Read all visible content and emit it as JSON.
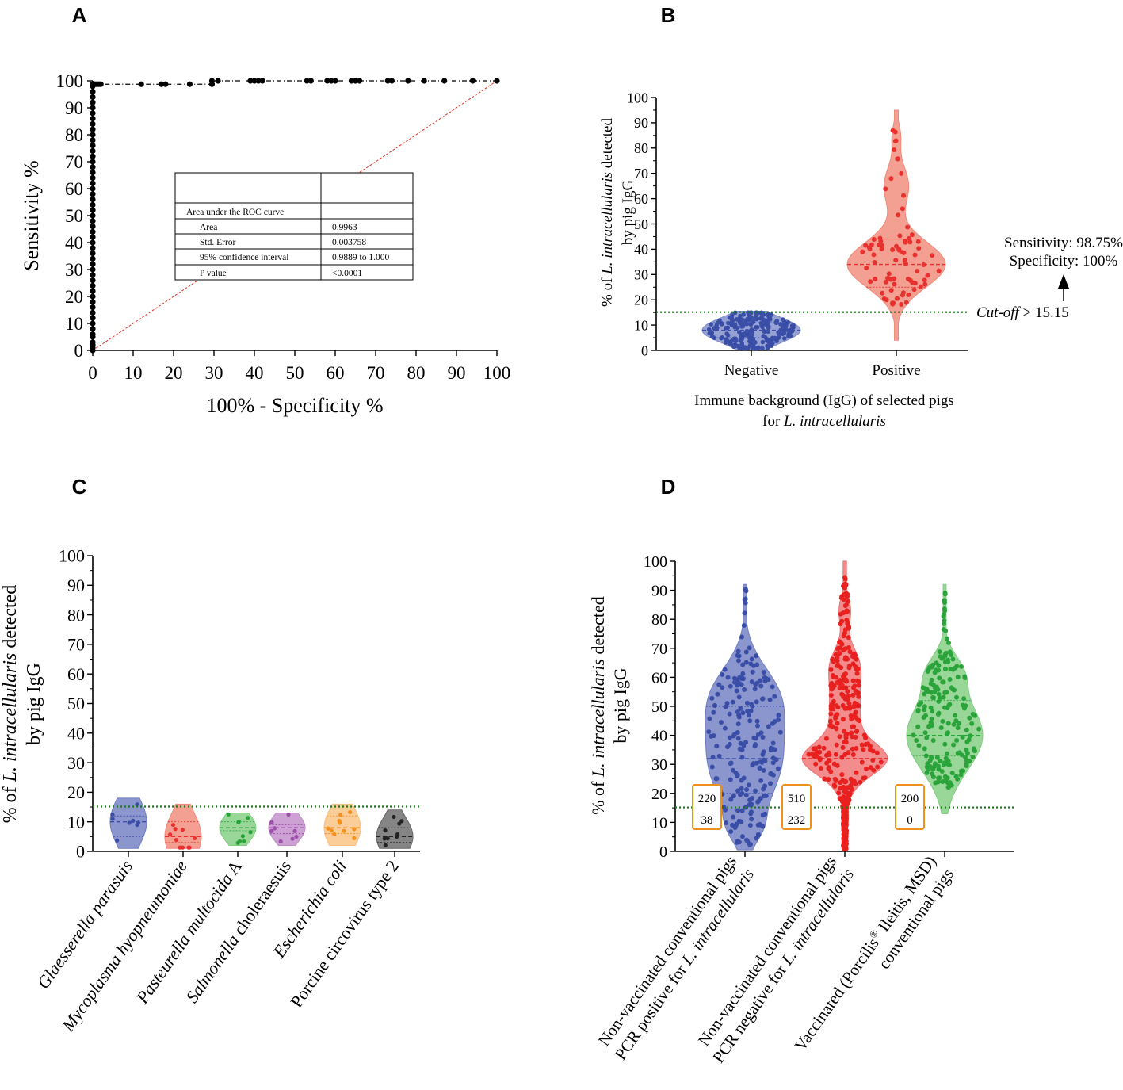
{
  "panels": {
    "A": "A",
    "B": "B",
    "C": "C",
    "D": "D"
  },
  "chart_data": [
    {
      "id": "A",
      "type": "line",
      "title": "",
      "xlabel": "100% - Specificity %",
      "ylabel": "Sensitivity %",
      "xlim": [
        0,
        100
      ],
      "ylim": [
        0,
        100
      ],
      "ticks": [
        "0",
        "10",
        "20",
        "30",
        "40",
        "50",
        "60",
        "70",
        "80",
        "90",
        "100"
      ],
      "series": [
        {
          "name": "ROC curve",
          "color": "#000000",
          "points": [
            [
              0,
              0
            ],
            [
              0,
              1
            ],
            [
              0,
              2
            ],
            [
              0,
              3
            ],
            [
              0,
              5
            ],
            [
              0,
              6
            ],
            [
              0,
              8
            ],
            [
              0,
              10
            ],
            [
              0,
              12
            ],
            [
              0,
              14
            ],
            [
              0,
              16
            ],
            [
              0,
              18
            ],
            [
              0,
              20
            ],
            [
              0,
              22
            ],
            [
              0,
              24
            ],
            [
              0,
              26
            ],
            [
              0,
              28
            ],
            [
              0,
              30
            ],
            [
              0,
              32
            ],
            [
              0,
              34
            ],
            [
              0,
              36
            ],
            [
              0,
              38
            ],
            [
              0,
              40
            ],
            [
              0,
              42
            ],
            [
              0,
              44
            ],
            [
              0,
              46
            ],
            [
              0,
              48
            ],
            [
              0,
              50
            ],
            [
              0,
              52
            ],
            [
              0,
              54
            ],
            [
              0,
              56
            ],
            [
              0,
              58
            ],
            [
              0,
              60
            ],
            [
              0,
              62
            ],
            [
              0,
              64
            ],
            [
              0,
              66
            ],
            [
              0,
              68
            ],
            [
              0,
              70
            ],
            [
              0,
              72
            ],
            [
              0,
              74
            ],
            [
              0,
              76
            ],
            [
              0,
              78
            ],
            [
              0,
              80
            ],
            [
              0,
              82
            ],
            [
              0,
              84
            ],
            [
              0,
              86
            ],
            [
              0,
              88
            ],
            [
              0,
              90
            ],
            [
              0,
              92
            ],
            [
              0,
              94
            ],
            [
              0,
              96
            ],
            [
              0,
              98
            ],
            [
              0,
              98.75
            ],
            [
              0.5,
              98.75
            ],
            [
              1,
              98.75
            ],
            [
              1.5,
              98.75
            ],
            [
              2,
              98.75
            ],
            [
              12,
              98.75
            ],
            [
              17,
              98.75
            ],
            [
              18,
              98.75
            ],
            [
              24,
              98.75
            ],
            [
              29.5,
              98.75
            ],
            [
              29.5,
              100
            ],
            [
              31,
              100
            ],
            [
              39,
              100
            ],
            [
              40,
              100
            ],
            [
              41,
              100
            ],
            [
              42,
              100
            ],
            [
              53,
              100
            ],
            [
              54,
              100
            ],
            [
              58,
              100
            ],
            [
              59,
              100
            ],
            [
              60,
              100
            ],
            [
              64,
              100
            ],
            [
              65,
              100
            ],
            [
              66,
              100
            ],
            [
              73,
              100
            ],
            [
              74,
              100
            ],
            [
              78,
              100
            ],
            [
              82,
              100
            ],
            [
              87,
              100
            ],
            [
              94,
              100
            ],
            [
              100,
              100
            ]
          ]
        },
        {
          "name": "Reference line",
          "color": "#e03020",
          "points": [
            [
              0,
              0
            ],
            [
              100,
              100
            ]
          ]
        }
      ],
      "inset_table": {
        "header": "Area under the ROC curve",
        "rows": [
          [
            "Area",
            "0.9963"
          ],
          [
            "Std. Error",
            "0.003758"
          ],
          [
            "95% confidence interval",
            "0.9889 to 1.000"
          ],
          [
            "P value",
            "<0.0001"
          ]
        ]
      }
    },
    {
      "id": "B",
      "type": "violin",
      "ylabel_italic": "L. intracellularis",
      "ylabel_pre": "% of ",
      "ylabel_post": " detected",
      "ylabel_line2": "by pig IgG",
      "xlabel_line1": "Immune background (IgG) of selected pigs",
      "xlabel_line2_pre": "for ",
      "xlabel_line2_italic": "L. intracellularis",
      "ylim": [
        0,
        100
      ],
      "ticks": [
        "0",
        "10",
        "20",
        "30",
        "40",
        "50",
        "60",
        "70",
        "80",
        "90",
        "100"
      ],
      "cutoff": 15.15,
      "cutoff_label_italic": "Cut-off",
      "cutoff_label_rest": " > 15.15",
      "sensitivity_label": "Sensitivity: 98.75%",
      "specificity_label": "Specificity: 100%",
      "groups": [
        {
          "name": "Negative",
          "color": "#3a4ea8",
          "fill": "#7d8bc9",
          "median": 8,
          "q1": 5,
          "q3": 11,
          "min": 0.5,
          "max": 15.5,
          "n": 220
        },
        {
          "name": "Positive",
          "color": "#e8312f",
          "fill": "#f08878",
          "median": 34,
          "q1": 25,
          "q3": 44,
          "min": 4,
          "max": 95,
          "n": 80
        }
      ]
    },
    {
      "id": "C",
      "type": "violin",
      "ylabel_italic": "L. intracellularis",
      "ylabel_pre": "% of ",
      "ylabel_post": " detected",
      "ylabel_line2": "by pig IgG",
      "ylim": [
        0,
        100
      ],
      "ticks": [
        "0",
        "10",
        "20",
        "30",
        "40",
        "50",
        "60",
        "70",
        "80",
        "90",
        "100"
      ],
      "cutoff": 15.15,
      "groups": [
        {
          "name_italic": "Glaesserella parasuis",
          "name_rest": "",
          "color": "#3a4ea8",
          "fill": "#6f7cc2",
          "median": 10,
          "q1": 5,
          "q3": 12,
          "min": 1,
          "max": 18,
          "n": 8
        },
        {
          "name_italic": "Mycoplasma hyopneumoniae",
          "name_rest": "",
          "color": "#e8312f",
          "fill": "#f08878",
          "median": 5,
          "q1": 3,
          "q3": 10,
          "min": 1,
          "max": 16,
          "n": 10
        },
        {
          "name_italic": "Pasteurella multocida",
          "name_rest": " A",
          "color": "#2aa43a",
          "fill": "#7fcd7f",
          "median": 8,
          "q1": 7,
          "q3": 10,
          "min": 2,
          "max": 13,
          "n": 9
        },
        {
          "name_italic": "Salmonella",
          "name_rest": " choleraesuis",
          "color": "#9b4fa8",
          "fill": "#c08ac9",
          "median": 8,
          "q1": 6,
          "q3": 9,
          "min": 2,
          "max": 13,
          "n": 9
        },
        {
          "name_italic": "Escherichia coli",
          "name_rest": "",
          "color": "#f4911e",
          "fill": "#f9c080",
          "median": 8,
          "q1": 6,
          "q3": 12,
          "min": 2,
          "max": 16,
          "n": 10
        },
        {
          "name_italic": "",
          "name_rest": "Porcine circovirus type 2",
          "color": "#222222",
          "fill": "#666666",
          "median": 5,
          "q1": 3,
          "q3": 8,
          "min": 1,
          "max": 14,
          "n": 9
        }
      ]
    },
    {
      "id": "D",
      "type": "violin",
      "ylabel_italic": "L. intracellularis",
      "ylabel_pre": "% of ",
      "ylabel_post": " detected",
      "ylabel_line2": "by pig IgG",
      "ylim": [
        0,
        100
      ],
      "ticks": [
        "0",
        "10",
        "20",
        "30",
        "40",
        "50",
        "60",
        "70",
        "80",
        "90",
        "100"
      ],
      "cutoff": 15.15,
      "groups": [
        {
          "line1": "Non-vaccinated conventional pigs",
          "line2_pre": "PCR positive for ",
          "line2_italic": "L. intracellularis",
          "line2_post": "",
          "box_top": "220",
          "box_bottom": "38",
          "color": "#3a4ea8",
          "fill": "#6f7cc2",
          "median": 32,
          "q1": 20,
          "q3": 50,
          "min": 0.5,
          "max": 92,
          "n": 220
        },
        {
          "line1": "Non-vaccinated conventional pigs",
          "line2_pre": "PCR negative for ",
          "line2_italic": "L. intracellularis",
          "line2_post": "",
          "box_top": "510",
          "box_bottom": "232",
          "color": "#e8201f",
          "fill": "#f07070",
          "median": 32,
          "q1": 8,
          "q3": 57,
          "min": 0.5,
          "max": 100,
          "n": 510
        },
        {
          "line1_pre": "Vaccinated (Porcilis",
          "line1_sup": "®",
          "line1_post": " Ileitis, MSD)",
          "line2_pre": "conventional pigs",
          "line2_italic": "",
          "line2_post": "",
          "box_top": "200",
          "box_bottom": "0",
          "color": "#2aa43a",
          "fill": "#7fcd7f",
          "median": 40,
          "q1": 33,
          "q3": 52,
          "min": 13,
          "max": 92,
          "n": 200
        }
      ]
    }
  ]
}
